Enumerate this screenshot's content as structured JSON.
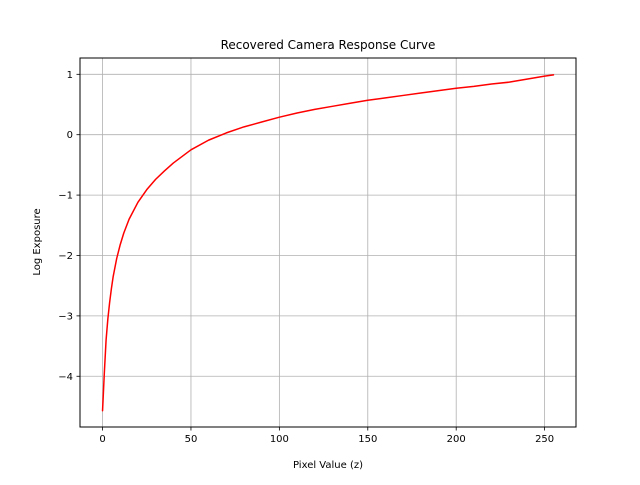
{
  "chart_data": {
    "type": "line",
    "title": "Recovered Camera Response Curve",
    "xlabel": "Pixel Value (z)",
    "ylabel": "Log Exposure",
    "xlim": [
      -12.75,
      267.75
    ],
    "ylim": [
      -4.84,
      1.27
    ],
    "x_ticks": [
      0,
      50,
      100,
      150,
      200,
      250
    ],
    "x_tick_labels": [
      "0",
      "50",
      "100",
      "150",
      "200",
      "250"
    ],
    "y_ticks": [
      -4,
      -3,
      -2,
      -1,
      0,
      1
    ],
    "y_tick_labels": [
      "−4",
      "−3",
      "−2",
      "−1",
      "0",
      "1"
    ],
    "grid": true,
    "legend": "none",
    "series": [
      {
        "color": "#ff0000",
        "x": [
          0,
          1,
          2,
          3,
          4,
          5,
          6,
          8,
          10,
          12,
          15,
          20,
          25,
          30,
          35,
          40,
          50,
          60,
          70,
          80,
          90,
          100,
          110,
          120,
          130,
          140,
          150,
          160,
          170,
          180,
          190,
          200,
          210,
          220,
          230,
          240,
          250,
          255
        ],
        "y": [
          -4.57,
          -3.95,
          -3.4,
          -3.05,
          -2.78,
          -2.55,
          -2.35,
          -2.05,
          -1.82,
          -1.63,
          -1.4,
          -1.12,
          -0.91,
          -0.74,
          -0.6,
          -0.47,
          -0.25,
          -0.09,
          0.03,
          0.13,
          0.21,
          0.29,
          0.36,
          0.42,
          0.47,
          0.52,
          0.57,
          0.61,
          0.65,
          0.69,
          0.73,
          0.77,
          0.8,
          0.84,
          0.87,
          0.92,
          0.97,
          0.99
        ]
      }
    ]
  }
}
